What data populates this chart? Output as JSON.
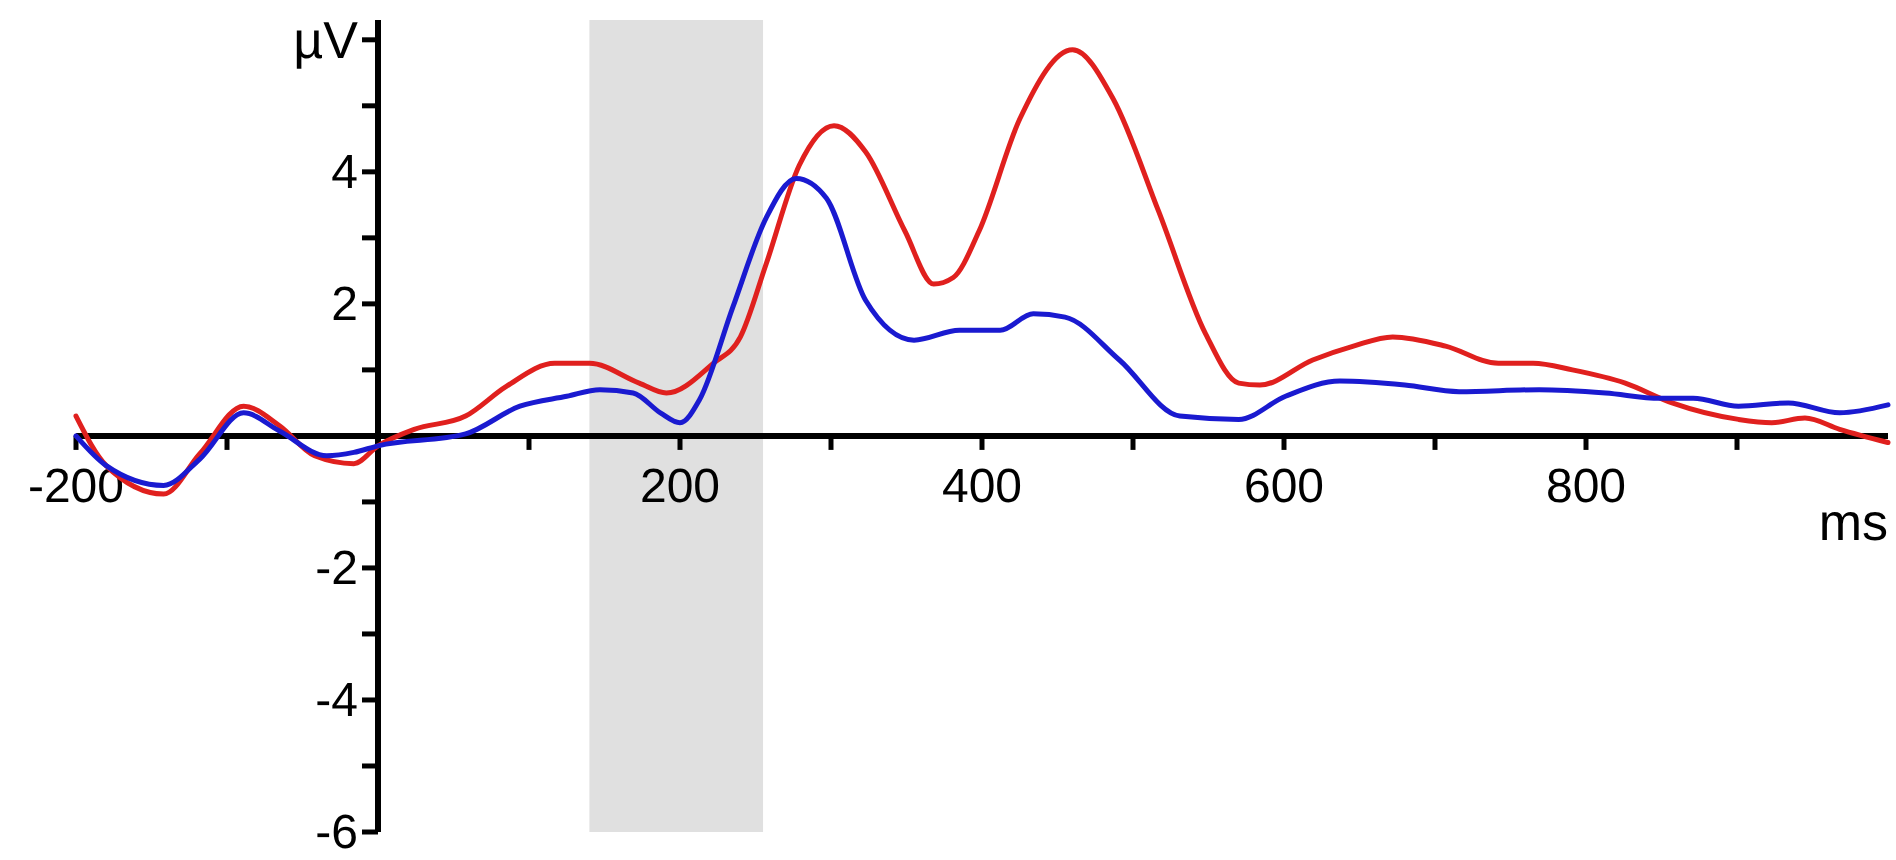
{
  "chart_data": {
    "type": "line",
    "xlabel": "ms",
    "ylabel": "µV",
    "xlim": [
      -200,
      1000
    ],
    "ylim": [
      -6,
      6.3
    ],
    "xticks": [
      -200,
      {
        "value": -100,
        "label": null
      },
      {
        "value": 100,
        "label": null
      },
      200,
      {
        "value": 300,
        "label": null
      },
      400,
      {
        "value": 500,
        "label": null
      },
      600,
      {
        "value": 700,
        "label": null
      },
      800,
      {
        "value": 900,
        "label": null
      }
    ],
    "yticks": [
      -6,
      {
        "value": -5,
        "label": null
      },
      -4,
      {
        "value": -3,
        "label": null
      },
      -2,
      {
        "value": -1,
        "label": null
      },
      {
        "value": 1,
        "label": null
      },
      2,
      {
        "value": 3,
        "label": null
      },
      4,
      {
        "value": 5,
        "label": null
      },
      {
        "value": 6,
        "label": null
      }
    ],
    "grid": false,
    "marker": "none",
    "line_style": "solid",
    "bands": [
      {
        "axis": "x",
        "from": 140,
        "to": 255,
        "color": "#e0e0e0"
      }
    ],
    "series": [
      {
        "color": "#e0201e",
        "x": [
          -200,
          -180,
          -142,
          -118,
          -89,
          -65,
          -42,
          -16,
          0,
          24,
          58,
          85,
          117,
          140,
          173,
          191,
          222,
          240,
          257,
          279,
          302,
          323,
          349,
          368,
          381,
          398,
          425,
          460,
          487,
          517,
          548,
          570,
          584,
          619,
          646,
          672,
          707,
          742,
          765,
          791,
          826,
          857,
          901,
          923,
          945,
          968,
          1000
        ],
        "values": [
          0.3,
          -0.45,
          -0.88,
          -0.27,
          0.45,
          0.15,
          -0.3,
          -0.42,
          -0.15,
          0.1,
          0.3,
          0.75,
          1.1,
          1.1,
          0.8,
          0.65,
          1.1,
          1.5,
          2.6,
          4.1,
          4.7,
          4.3,
          3.1,
          2.3,
          2.4,
          3.1,
          4.8,
          5.85,
          5.1,
          3.4,
          1.55,
          0.8,
          0.77,
          1.15,
          1.36,
          1.5,
          1.36,
          1.1,
          1.1,
          1.0,
          0.8,
          0.5,
          0.25,
          0.2,
          0.27,
          0.1,
          -0.1
        ]
      },
      {
        "color": "#1a1ad0",
        "x": [
          -200,
          -180,
          -142,
          -118,
          -89,
          -65,
          -34,
          -16,
          0,
          58,
          94,
          125,
          147,
          169,
          187,
          200,
          213,
          235,
          257,
          277,
          297,
          323,
          355,
          385,
          412,
          434,
          455,
          491,
          531,
          570,
          601,
          637,
          680,
          716,
          769,
          813,
          849,
          871,
          901,
          934,
          968,
          1000
        ],
        "values": [
          0,
          -0.45,
          -0.75,
          -0.35,
          0.35,
          0.07,
          -0.3,
          -0.25,
          -0.15,
          0.03,
          0.45,
          0.6,
          0.7,
          0.65,
          0.35,
          0.2,
          0.55,
          1.95,
          3.3,
          3.9,
          3.6,
          2.05,
          1.45,
          1.6,
          1.6,
          1.85,
          1.8,
          1.15,
          0.3,
          0.25,
          0.6,
          0.83,
          0.77,
          0.67,
          0.7,
          0.65,
          0.57,
          0.57,
          0.45,
          0.5,
          0.35,
          0.47
        ]
      }
    ]
  }
}
